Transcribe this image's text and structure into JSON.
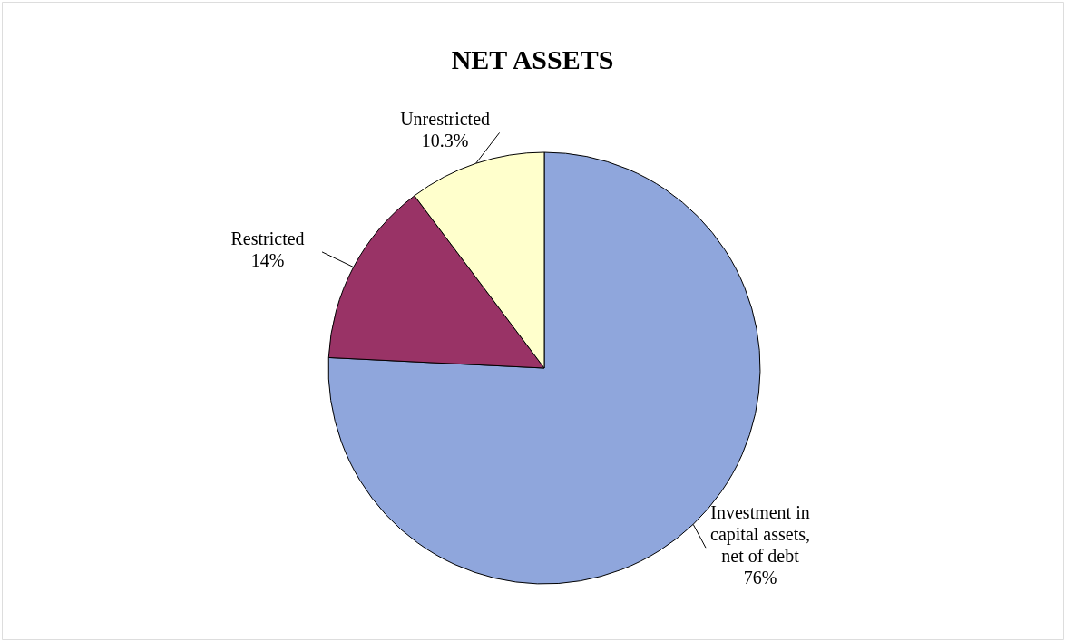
{
  "chart_data": {
    "type": "pie",
    "title": "NET ASSETS",
    "categories": [
      "Investment in capital assets, net of debt",
      "Restricted",
      "Unrestricted"
    ],
    "values": [
      76,
      14,
      10.3
    ],
    "colors": [
      "#8fa6dc",
      "#993366",
      "#ffffcc"
    ],
    "value_labels": [
      "76%",
      "14%",
      "10.3%"
    ],
    "legend": false
  }
}
